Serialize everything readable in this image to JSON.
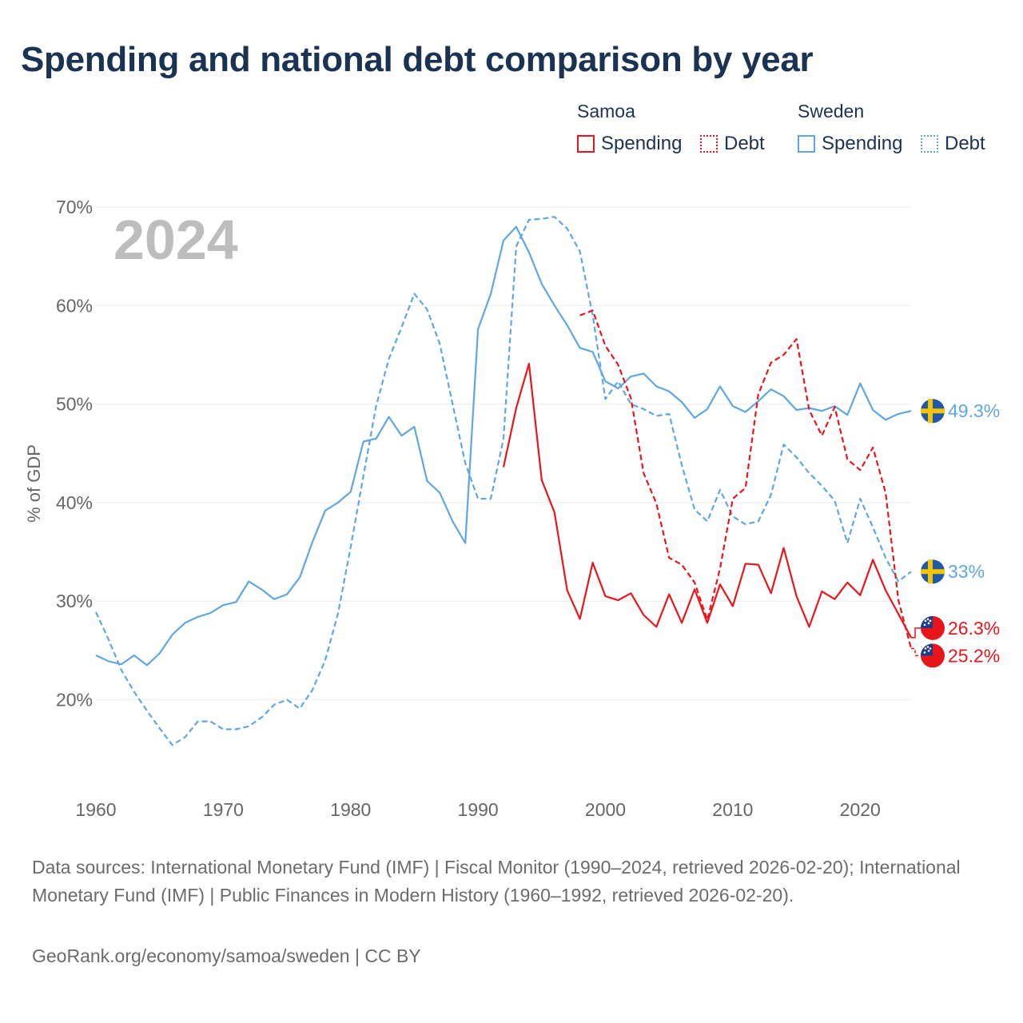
{
  "title": "Spending and national debt comparison by year",
  "year_label": "2024",
  "legend": {
    "groups": [
      {
        "country": "Samoa",
        "items": [
          {
            "label": "Spending",
            "color": "#e8161b",
            "style": "solid"
          },
          {
            "label": "Debt",
            "color": "#e8161b",
            "style": "dotted"
          }
        ]
      },
      {
        "country": "Sweden",
        "items": [
          {
            "label": "Spending",
            "color": "#5ea6e4",
            "style": "solid"
          },
          {
            "label": "Debt",
            "color": "#5ea6e4",
            "style": "dotted"
          }
        ]
      }
    ]
  },
  "footer": {
    "sources": "Data sources: International Monetary Fund (IMF) | Fiscal Monitor (1990–2024, retrieved 2026-02-20); International Monetary Fund (IMF) | Public Finances in Modern History (1960–1992, retrieved 2026-02-20).",
    "credit": "GeoRank.org/economy/samoa/sweden | CC BY"
  },
  "chart_data": {
    "type": "line",
    "ylabel": "% of GDP",
    "xlabel": "",
    "xlim": [
      1960,
      2024
    ],
    "ylim": [
      10,
      70
    ],
    "x_ticks": [
      1960,
      1970,
      1980,
      1990,
      2000,
      2010,
      2020
    ],
    "y_ticks": [
      20,
      30,
      40,
      50,
      60,
      70
    ],
    "y_tick_labels": [
      "20%",
      "30%",
      "40%",
      "50%",
      "60%",
      "70%"
    ],
    "grid": "horizontal",
    "series": [
      {
        "name": "Sweden Spending",
        "country": "Sweden",
        "measure": "Spending",
        "color": "#5ea6e4",
        "dash": "solid",
        "start_year": 1960,
        "values": [
          24.5,
          23.9,
          23.6,
          24.5,
          23.5,
          24.7,
          26.6,
          27.8,
          28.4,
          28.8,
          29.6,
          29.9,
          32.0,
          31.2,
          30.2,
          30.7,
          32.4,
          36.0,
          39.2,
          40.0,
          41.1,
          46.2,
          46.5,
          48.7,
          46.8,
          47.7,
          42.2,
          41.0,
          38.1,
          35.9,
          57.6,
          61.2,
          66.6,
          68.0,
          65.4,
          62.2,
          60.0,
          58.0,
          55.7,
          55.3,
          52.3,
          51.6,
          52.8,
          53.1,
          51.8,
          51.3,
          50.2,
          48.6,
          49.5,
          51.8,
          49.8,
          49.2,
          50.3,
          51.5,
          50.8,
          49.4,
          49.6,
          49.3,
          49.8,
          48.9,
          52.1,
          49.4,
          48.4,
          49.0,
          49.3
        ],
        "end_label": "49.3%"
      },
      {
        "name": "Sweden Debt",
        "country": "Sweden",
        "measure": "Debt",
        "color": "#5ea6e4",
        "dash": "dashed",
        "start_year": 1960,
        "values": [
          28.9,
          26.1,
          23.0,
          20.8,
          18.9,
          17.1,
          15.4,
          16.2,
          17.8,
          17.8,
          17.0,
          17.0,
          17.3,
          18.2,
          19.5,
          20.0,
          19.1,
          21.0,
          24.0,
          28.7,
          35.5,
          42.7,
          49.8,
          54.6,
          57.8,
          61.2,
          59.6,
          56.1,
          50.0,
          44.0,
          40.4,
          40.4,
          46.5,
          66.0,
          68.7,
          68.8,
          69.0,
          67.8,
          65.5,
          59.0,
          50.5,
          52.3,
          50.0,
          49.5,
          48.8,
          49.0,
          43.8,
          39.3,
          38.1,
          41.3,
          38.6,
          37.8,
          38.1,
          40.8,
          45.9,
          44.6,
          43.0,
          41.7,
          40.2,
          35.9,
          40.4,
          37.5,
          34.4,
          32.0,
          33.0
        ],
        "end_label": "33%"
      },
      {
        "name": "Samoa Spending",
        "country": "Samoa",
        "measure": "Spending",
        "color": "#e8161b",
        "dash": "solid",
        "start_year": 1992,
        "values": [
          43.6,
          49.6,
          54.1,
          42.3,
          39.0,
          31.1,
          28.2,
          33.9,
          30.5,
          30.1,
          30.8,
          28.6,
          27.4,
          30.7,
          27.8,
          31.2,
          27.8,
          31.7,
          29.5,
          33.8,
          33.7,
          30.8,
          35.4,
          30.5,
          27.4,
          31.0,
          30.2,
          31.9,
          30.6,
          34.2,
          31.1,
          28.7,
          26.3
        ],
        "end_label": "26.3%"
      },
      {
        "name": "Samoa Debt",
        "country": "Samoa",
        "measure": "Debt",
        "color": "#e8161b",
        "dash": "dashed",
        "start_year": 1998,
        "values": [
          59.0,
          59.5,
          55.9,
          54.0,
          50.6,
          43.0,
          39.9,
          34.4,
          33.7,
          31.9,
          28.1,
          33.3,
          40.4,
          41.5,
          51.0,
          54.2,
          55.0,
          56.6,
          49.4,
          46.8,
          49.7,
          44.4,
          43.3,
          45.6,
          41.0,
          30.1,
          25.2
        ],
        "end_label": "25.2%"
      }
    ]
  }
}
